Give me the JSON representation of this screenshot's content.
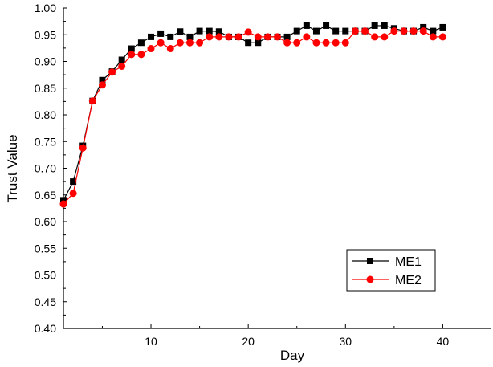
{
  "chart_data": {
    "type": "line",
    "xlabel": "Day",
    "ylabel": "Trust Value",
    "xlim": [
      1,
      45
    ],
    "ylim": [
      0.4,
      1.0
    ],
    "xticks": [
      10,
      20,
      30,
      40
    ],
    "xtick_labels": [
      "10",
      "20",
      "30",
      "40"
    ],
    "yticks": [
      0.4,
      0.45,
      0.5,
      0.55,
      0.6,
      0.65,
      0.7,
      0.75,
      0.8,
      0.85,
      0.9,
      0.95,
      1.0
    ],
    "ytick_labels": [
      "0.40",
      "0.45",
      "0.50",
      "0.55",
      "0.60",
      "0.65",
      "0.70",
      "0.75",
      "0.80",
      "0.85",
      "0.90",
      "0.95",
      "1.00"
    ],
    "legend_position": "bottom-right",
    "grid": false,
    "x": [
      1,
      2,
      3,
      4,
      5,
      6,
      7,
      8,
      9,
      10,
      11,
      12,
      13,
      14,
      15,
      16,
      17,
      18,
      19,
      20,
      21,
      22,
      23,
      24,
      25,
      26,
      27,
      28,
      29,
      30,
      31,
      32,
      33,
      34,
      35,
      36,
      37,
      38,
      39,
      40
    ],
    "series": [
      {
        "name": "ME1",
        "color": "#000000",
        "marker": "square",
        "values": [
          0.64,
          0.675,
          0.742,
          0.826,
          0.865,
          0.881,
          0.903,
          0.924,
          0.935,
          0.946,
          0.952,
          0.946,
          0.956,
          0.946,
          0.957,
          0.957,
          0.956,
          0.946,
          0.946,
          0.935,
          0.935,
          0.946,
          0.946,
          0.946,
          0.957,
          0.967,
          0.957,
          0.967,
          0.957,
          0.957,
          0.957,
          0.957,
          0.967,
          0.967,
          0.962,
          0.957,
          0.957,
          0.964,
          0.957,
          0.964
        ]
      },
      {
        "name": "ME2",
        "color": "#ff0000",
        "marker": "circle",
        "values": [
          0.633,
          0.653,
          0.738,
          0.826,
          0.856,
          0.88,
          0.891,
          0.913,
          0.913,
          0.924,
          0.935,
          0.924,
          0.935,
          0.935,
          0.935,
          0.946,
          0.946,
          0.946,
          0.946,
          0.955,
          0.946,
          0.946,
          0.946,
          0.935,
          0.935,
          0.946,
          0.935,
          0.935,
          0.935,
          0.935,
          0.957,
          0.957,
          0.946,
          0.946,
          0.957,
          0.957,
          0.957,
          0.957,
          0.946,
          0.946
        ]
      }
    ]
  }
}
